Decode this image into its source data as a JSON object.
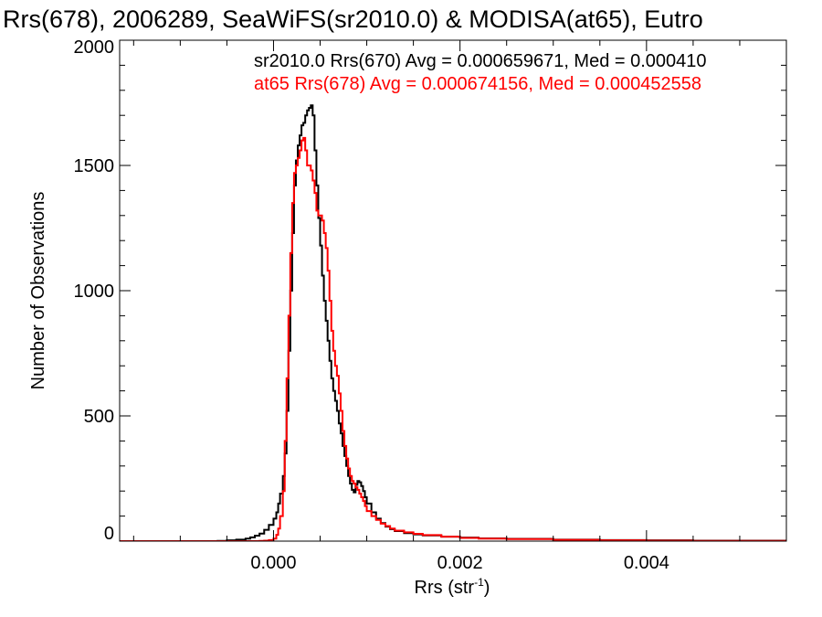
{
  "chart_data": {
    "type": "histogram",
    "title": "Rrs(678), 2006289, SeaWiFS(sr2010.0) & MODISA(at65), Eutro",
    "xlabel": "Rrs (str",
    "xlabel_sup": "-1",
    "xlabel_close": ")",
    "ylabel": "Number of Observations",
    "xlim": [
      -0.00165,
      0.0055
    ],
    "ylim": [
      0,
      2000
    ],
    "grid": false,
    "x_ticks": [
      0.0,
      0.002,
      0.004
    ],
    "x_tick_labels": [
      "0.000",
      "0.002",
      "0.004"
    ],
    "y_ticks": [
      0,
      500,
      1000,
      1500,
      2000
    ],
    "y_tick_labels": [
      "0",
      "500",
      "1000",
      "1500",
      "2000"
    ],
    "legend_position": "top-right",
    "series": [
      {
        "name": "sr2010.0 Rrs(670) Avg = 0.000659671, Med = 0.000410",
        "color": "#000000",
        "points": [
          [
            -0.00165,
            0
          ],
          [
            -0.0008,
            0
          ],
          [
            -0.0006,
            1
          ],
          [
            -0.0005,
            3
          ],
          [
            -0.0004,
            6
          ],
          [
            -0.0003,
            10
          ],
          [
            -0.00025,
            15
          ],
          [
            -0.0002,
            22
          ],
          [
            -0.00015,
            30
          ],
          [
            -0.0001,
            45
          ],
          [
            -5e-05,
            65
          ],
          [
            0.0,
            90
          ],
          [
            3e-05,
            115
          ],
          [
            5e-05,
            150
          ],
          [
            7e-05,
            190
          ],
          [
            0.0001,
            260
          ],
          [
            0.00012,
            350
          ],
          [
            0.00014,
            520
          ],
          [
            0.00016,
            760
          ],
          [
            0.00018,
            1000
          ],
          [
            0.0002,
            1230
          ],
          [
            0.00022,
            1420
          ],
          [
            0.00024,
            1520
          ],
          [
            0.00026,
            1580
          ],
          [
            0.00028,
            1620
          ],
          [
            0.0003,
            1660
          ],
          [
            0.00032,
            1670
          ],
          [
            0.00034,
            1700
          ],
          [
            0.00036,
            1720
          ],
          [
            0.00038,
            1730
          ],
          [
            0.0004,
            1740
          ],
          [
            0.00042,
            1700
          ],
          [
            0.00044,
            1560
          ],
          [
            0.00046,
            1420
          ],
          [
            0.00048,
            1290
          ],
          [
            0.0005,
            1180
          ],
          [
            0.00052,
            1060
          ],
          [
            0.00054,
            960
          ],
          [
            0.00056,
            880
          ],
          [
            0.00058,
            800
          ],
          [
            0.0006,
            720
          ],
          [
            0.00062,
            650
          ],
          [
            0.00064,
            600
          ],
          [
            0.00066,
            560
          ],
          [
            0.00068,
            520
          ],
          [
            0.0007,
            470
          ],
          [
            0.00072,
            430
          ],
          [
            0.00074,
            380
          ],
          [
            0.00076,
            340
          ],
          [
            0.00078,
            300
          ],
          [
            0.0008,
            260
          ],
          [
            0.00082,
            230
          ],
          [
            0.00084,
            205
          ],
          [
            0.00086,
            195
          ],
          [
            0.00088,
            225
          ],
          [
            0.0009,
            240
          ],
          [
            0.00092,
            235
          ],
          [
            0.00094,
            220
          ],
          [
            0.00096,
            200
          ],
          [
            0.00098,
            175
          ],
          [
            0.001,
            150
          ],
          [
            0.00105,
            115
          ],
          [
            0.0011,
            90
          ],
          [
            0.00115,
            72
          ],
          [
            0.0012,
            58
          ],
          [
            0.00125,
            48
          ],
          [
            0.0013,
            40
          ],
          [
            0.0014,
            32
          ],
          [
            0.0015,
            27
          ],
          [
            0.0016,
            23
          ],
          [
            0.0018,
            18
          ],
          [
            0.002,
            14
          ],
          [
            0.0022,
            11
          ],
          [
            0.0025,
            9
          ],
          [
            0.003,
            6
          ],
          [
            0.0035,
            4
          ],
          [
            0.004,
            3
          ],
          [
            0.0045,
            2
          ],
          [
            0.005,
            2
          ],
          [
            0.0055,
            1
          ]
        ]
      },
      {
        "name": "at65 Rrs(678) Avg = 0.000674156, Med = 0.000452558",
        "color": "#ff0000",
        "points": [
          [
            -0.00165,
            0
          ],
          [
            -0.0002,
            0
          ],
          [
            -0.00015,
            1
          ],
          [
            -0.0001,
            2
          ],
          [
            -5e-05,
            4
          ],
          [
            0.0,
            10
          ],
          [
            3e-05,
            25
          ],
          [
            5e-05,
            50
          ],
          [
            7e-05,
            100
          ],
          [
            0.0001,
            200
          ],
          [
            0.00012,
            400
          ],
          [
            0.00014,
            650
          ],
          [
            0.00016,
            900
          ],
          [
            0.00018,
            1150
          ],
          [
            0.0002,
            1350
          ],
          [
            0.00022,
            1470
          ],
          [
            0.00024,
            1500
          ],
          [
            0.00026,
            1530
          ],
          [
            0.00028,
            1560
          ],
          [
            0.0003,
            1600
          ],
          [
            0.00032,
            1610
          ],
          [
            0.00034,
            1560
          ],
          [
            0.00036,
            1500
          ],
          [
            0.00038,
            1500
          ],
          [
            0.0004,
            1480
          ],
          [
            0.00042,
            1440
          ],
          [
            0.00044,
            1390
          ],
          [
            0.00046,
            1320
          ],
          [
            0.00048,
            1300
          ],
          [
            0.0005,
            1300
          ],
          [
            0.00052,
            1280
          ],
          [
            0.00054,
            1230
          ],
          [
            0.00056,
            1170
          ],
          [
            0.00058,
            1080
          ],
          [
            0.0006,
            960
          ],
          [
            0.00062,
            840
          ],
          [
            0.00064,
            760
          ],
          [
            0.00066,
            700
          ],
          [
            0.00068,
            660
          ],
          [
            0.0007,
            590
          ],
          [
            0.00072,
            520
          ],
          [
            0.00074,
            440
          ],
          [
            0.00076,
            380
          ],
          [
            0.00078,
            330
          ],
          [
            0.0008,
            290
          ],
          [
            0.00082,
            260
          ],
          [
            0.00084,
            240
          ],
          [
            0.00086,
            230
          ],
          [
            0.00088,
            215
          ],
          [
            0.0009,
            205
          ],
          [
            0.00092,
            190
          ],
          [
            0.00094,
            175
          ],
          [
            0.00096,
            160
          ],
          [
            0.00098,
            140
          ],
          [
            0.001,
            120
          ],
          [
            0.00105,
            100
          ],
          [
            0.0011,
            85
          ],
          [
            0.00115,
            70
          ],
          [
            0.0012,
            60
          ],
          [
            0.00125,
            50
          ],
          [
            0.0013,
            42
          ],
          [
            0.0014,
            35
          ],
          [
            0.0015,
            29
          ],
          [
            0.0016,
            24
          ],
          [
            0.0018,
            18
          ],
          [
            0.002,
            13
          ],
          [
            0.0022,
            10
          ],
          [
            0.0025,
            8
          ],
          [
            0.003,
            5
          ],
          [
            0.0035,
            3
          ],
          [
            0.004,
            2
          ],
          [
            0.0045,
            1
          ],
          [
            0.005,
            1
          ],
          [
            0.0055,
            1
          ]
        ]
      }
    ]
  }
}
